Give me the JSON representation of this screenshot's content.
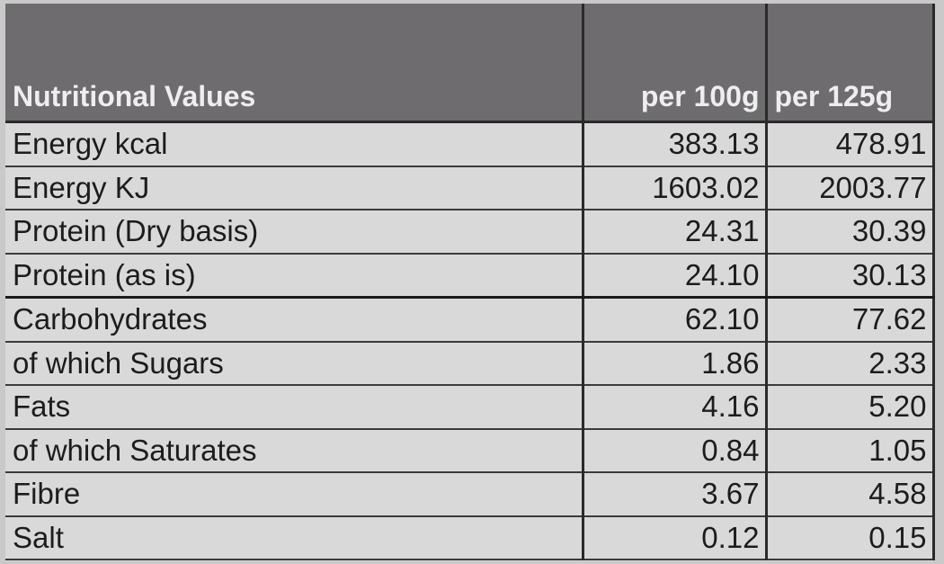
{
  "table": {
    "header": [
      "Nutritional Values",
      "per 100g",
      "per 125g"
    ],
    "rows": [
      [
        "Energy kcal",
        "383.13",
        "478.91"
      ],
      [
        "Energy KJ",
        "1603.02",
        "2003.77"
      ],
      [
        "Protein (Dry basis)",
        "24.31",
        "30.39"
      ],
      [
        "Protein (as is)",
        "24.10",
        "30.13"
      ],
      [
        "Carbohydrates",
        "62.10",
        "77.62"
      ],
      [
        "of which Sugars",
        "1.86",
        "2.33"
      ],
      [
        "Fats",
        "4.16",
        "5.20"
      ],
      [
        "of which Saturates",
        "0.84",
        "1.05"
      ],
      [
        "Fibre",
        "3.67",
        "4.58"
      ],
      [
        "Salt",
        "0.12",
        "0.15"
      ]
    ]
  }
}
